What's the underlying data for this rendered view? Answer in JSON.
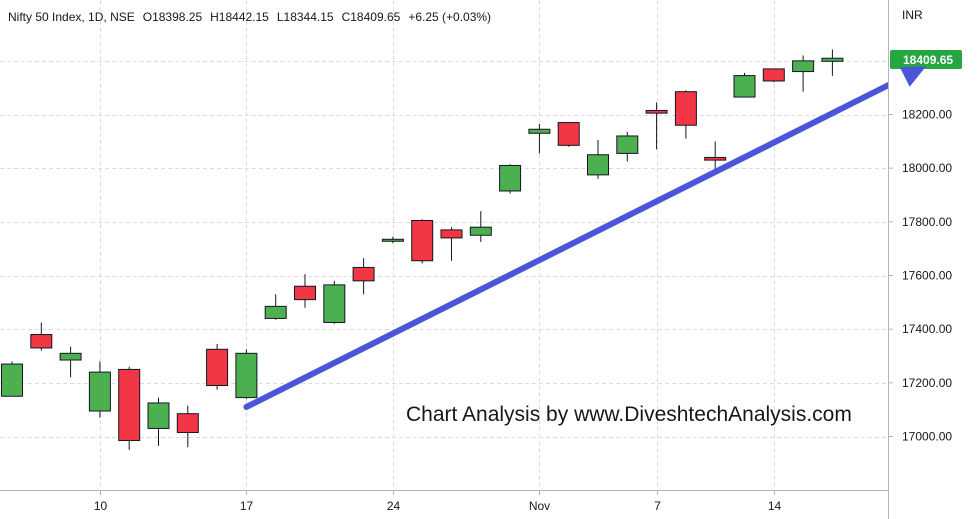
{
  "header": {
    "symbol": "Nifty 50 Index",
    "interval": "1D",
    "exchange": "NSE",
    "open": "O18398.25",
    "high": "H18442.15",
    "low": "L18344.15",
    "close": "C18409.65",
    "change": "+6.25 (+0.03%)"
  },
  "currency": "INR",
  "last_price_label": "18409.65",
  "watermark": "Chart Analysis by www.DiveshtechAnalysis.com",
  "colors": {
    "up": "#4caf50",
    "down": "#f23645",
    "arrow": "#4a55d9",
    "last_price_bg": "#26a641",
    "grid": "#d9dce3"
  },
  "chart_data": {
    "type": "candlestick",
    "ylim": [
      16860,
      18520
    ],
    "y_ticks": [
      17000,
      17200,
      17400,
      17600,
      17800,
      18000,
      18200
    ],
    "y_tick_labels": [
      "17000.00",
      "17200.00",
      "17400.00",
      "17600.00",
      "17800.00",
      "18000.00",
      "18200.00"
    ],
    "x_labels": [
      {
        "index": 3,
        "label": "10"
      },
      {
        "index": 8,
        "label": "17"
      },
      {
        "index": 13,
        "label": "24"
      },
      {
        "index": 18,
        "label": "Nov"
      },
      {
        "index": 22,
        "label": "7"
      },
      {
        "index": 26,
        "label": "14"
      }
    ],
    "candles": [
      {
        "o": 17150,
        "h": 17280,
        "l": 17150,
        "c": 17270
      },
      {
        "o": 17380,
        "h": 17425,
        "l": 17320,
        "c": 17330
      },
      {
        "o": 17285,
        "h": 17335,
        "l": 17220,
        "c": 17310
      },
      {
        "o": 17095,
        "h": 17280,
        "l": 17070,
        "c": 17240
      },
      {
        "o": 17250,
        "h": 17260,
        "l": 16950,
        "c": 16985
      },
      {
        "o": 17030,
        "h": 17145,
        "l": 16965,
        "c": 17125
      },
      {
        "o": 17085,
        "h": 17115,
        "l": 16960,
        "c": 17015
      },
      {
        "o": 17325,
        "h": 17345,
        "l": 17175,
        "c": 17190
      },
      {
        "o": 17145,
        "h": 17325,
        "l": 17140,
        "c": 17310
      },
      {
        "o": 17440,
        "h": 17530,
        "l": 17435,
        "c": 17485
      },
      {
        "o": 17560,
        "h": 17605,
        "l": 17480,
        "c": 17510
      },
      {
        "o": 17425,
        "h": 17580,
        "l": 17420,
        "c": 17565
      },
      {
        "o": 17630,
        "h": 17665,
        "l": 17530,
        "c": 17580
      },
      {
        "o": 17730,
        "h": 17745,
        "l": 17720,
        "c": 17735
      },
      {
        "o": 17805,
        "h": 17810,
        "l": 17645,
        "c": 17655
      },
      {
        "o": 17770,
        "h": 17780,
        "l": 17655,
        "c": 17740
      },
      {
        "o": 17750,
        "h": 17840,
        "l": 17725,
        "c": 17780
      },
      {
        "o": 17915,
        "h": 18015,
        "l": 17905,
        "c": 18010
      },
      {
        "o": 18130,
        "h": 18165,
        "l": 18055,
        "c": 18145
      },
      {
        "o": 18170,
        "h": 18170,
        "l": 18080,
        "c": 18085
      },
      {
        "o": 17975,
        "h": 18105,
        "l": 17960,
        "c": 18050
      },
      {
        "o": 18055,
        "h": 18135,
        "l": 18025,
        "c": 18120
      },
      {
        "o": 18215,
        "h": 18245,
        "l": 18070,
        "c": 18205
      },
      {
        "o": 18285,
        "h": 18290,
        "l": 18110,
        "c": 18160
      },
      {
        "o": 18040,
        "h": 18100,
        "l": 17980,
        "c": 18030
      },
      {
        "o": 18265,
        "h": 18355,
        "l": 18265,
        "c": 18345
      },
      {
        "o": 18370,
        "h": 18370,
        "l": 18320,
        "c": 18325
      },
      {
        "o": 18360,
        "h": 18420,
        "l": 18285,
        "c": 18400
      },
      {
        "o": 18398.25,
        "h": 18442.15,
        "l": 18344.15,
        "c": 18409.65
      }
    ],
    "trend_arrow": {
      "from": {
        "index": 8,
        "value": 17110
      },
      "to": {
        "index": 31.2,
        "value": 18380
      }
    }
  }
}
